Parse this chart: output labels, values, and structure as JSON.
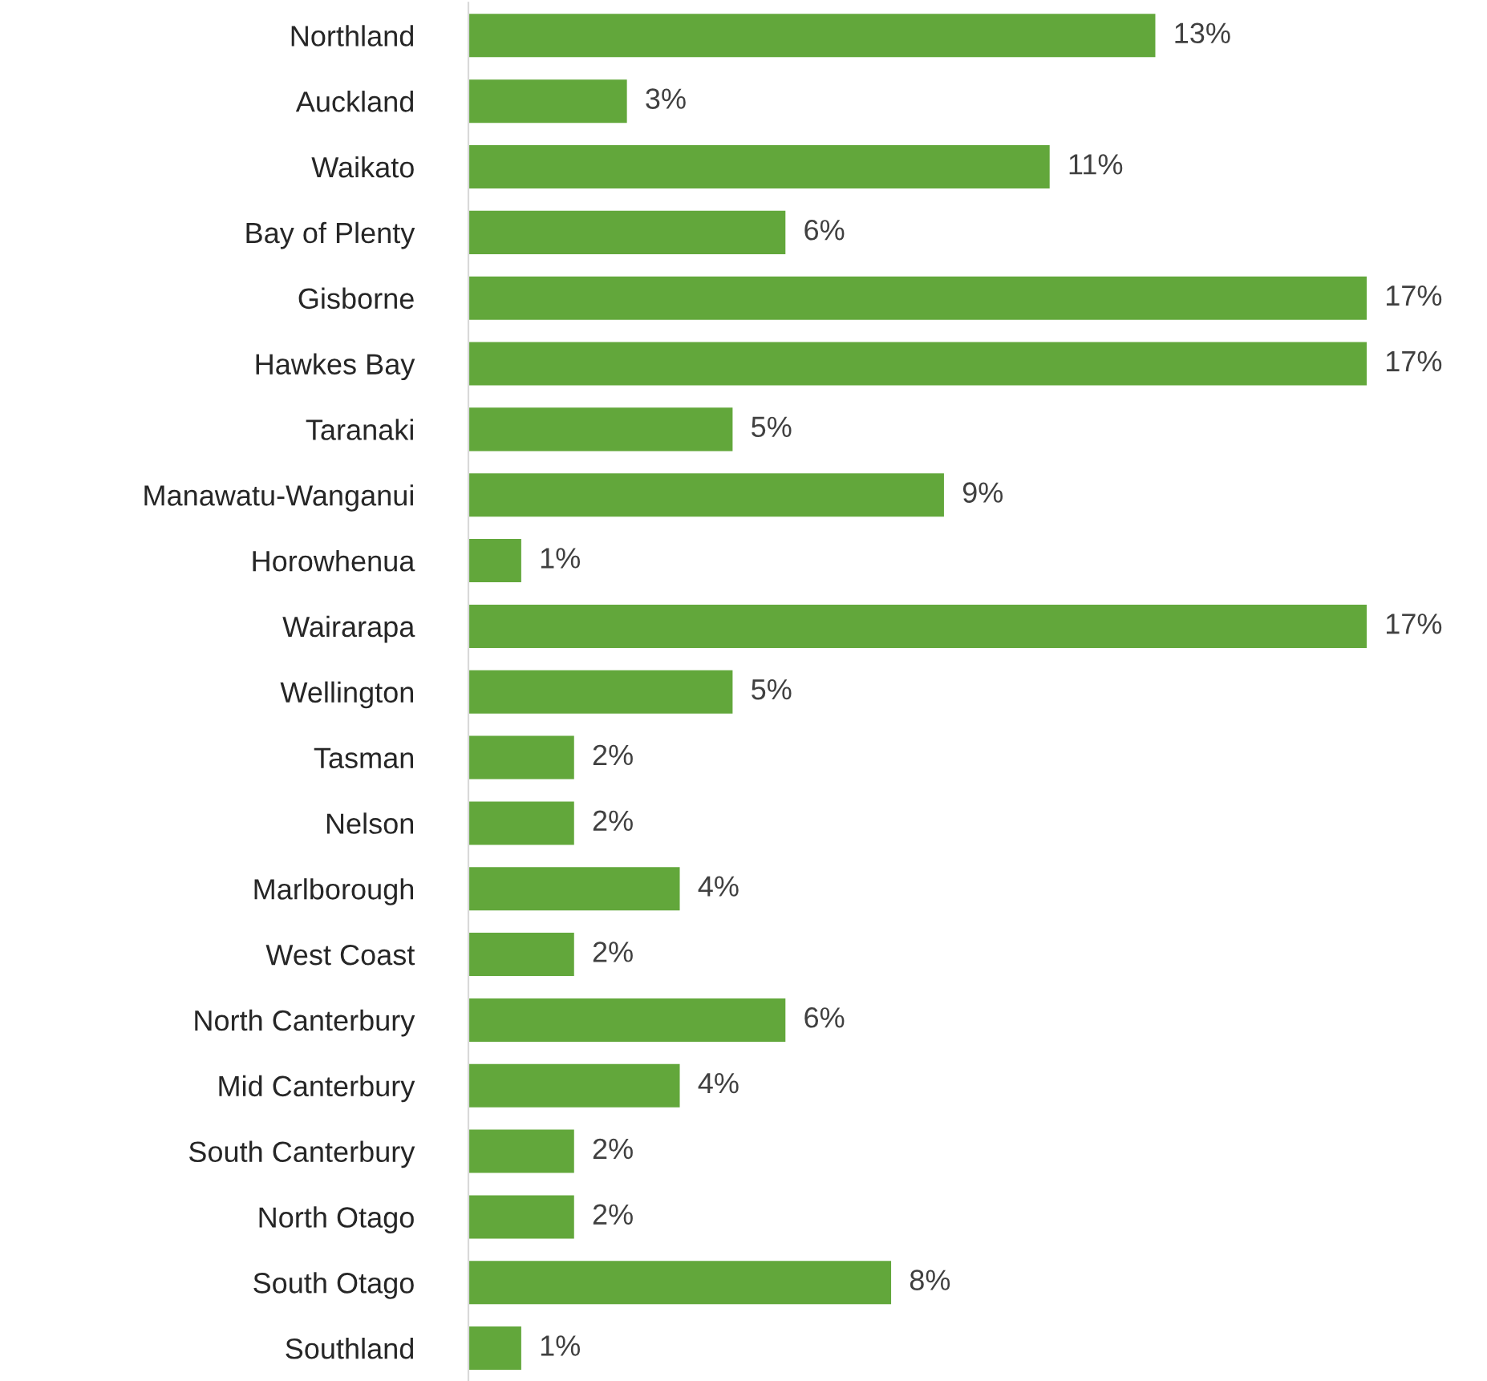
{
  "chart_data": {
    "type": "bar",
    "orientation": "horizontal",
    "categories": [
      "Northland",
      "Auckland",
      "Waikato",
      "Bay of Plenty",
      "Gisborne",
      "Hawkes Bay",
      "Taranaki",
      "Manawatu-Wanganui",
      "Horowhenua",
      "Wairarapa",
      "Wellington",
      "Tasman",
      "Nelson",
      "Marlborough",
      "West Coast",
      "North Canterbury",
      "Mid Canterbury",
      "South Canterbury",
      "North Otago",
      "South Otago",
      "Southland"
    ],
    "values": [
      13,
      3,
      11,
      6,
      17,
      17,
      5,
      9,
      1,
      17,
      5,
      2,
      2,
      4,
      2,
      6,
      4,
      2,
      2,
      8,
      1
    ],
    "value_labels": [
      "13%",
      "3%",
      "11%",
      "6%",
      "17%",
      "17%",
      "5%",
      "9%",
      "1%",
      "17%",
      "5%",
      "2%",
      "2%",
      "4%",
      "2%",
      "6%",
      "4%",
      "2%",
      "2%",
      "8%",
      "1%"
    ],
    "color": "#62a73b",
    "tick_labels": "y",
    "grid": false,
    "legend": false
  }
}
